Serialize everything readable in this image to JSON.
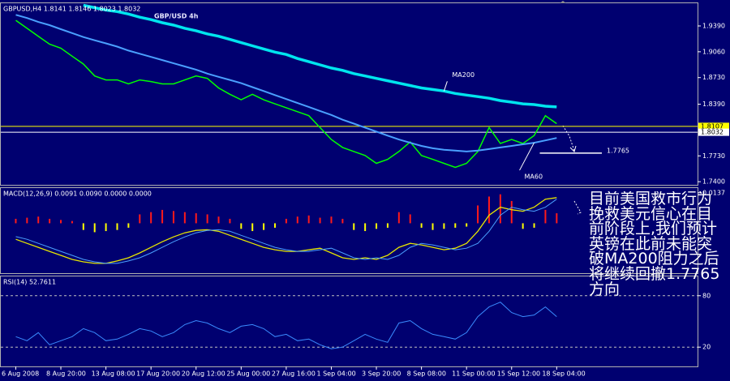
{
  "chart_data": [
    {
      "type": "line",
      "title": "GBP/USD 4h",
      "label": "GBPUSD,H4 1.8141 1.8146 1.8023 1.8032",
      "xlim": [
        -1.4,
        60.5
      ],
      "ylim": [
        1.736,
        1.968
      ],
      "yticks": [
        {
          "value": 1.939,
          "label": "1.9390"
        },
        {
          "value": 1.906,
          "label": "1.9060"
        },
        {
          "value": 1.873,
          "label": "1.8730"
        },
        {
          "value": 1.839,
          "label": "1.8390"
        },
        {
          "value": 1.773,
          "label": "1.7730"
        },
        {
          "value": 1.74,
          "label": "1.7400"
        }
      ],
      "hlines": [
        {
          "value": 1.8107,
          "color": "#ffff00",
          "style": "axis"
        },
        {
          "value": 1.8032,
          "color": "#ffffff",
          "style": "axis"
        },
        {
          "value": 1.7765,
          "color": "#ffffff",
          "style": "annotation"
        }
      ],
      "series": [
        {
          "color": "#00ff00",
          "width": 1.5,
          "values": [
            1.9461,
            1.936,
            1.9258,
            1.9157,
            1.9106,
            1.9004,
            1.8903,
            1.8751,
            1.87,
            1.87,
            1.8649,
            1.87,
            1.8679,
            1.8649,
            1.8649,
            1.87,
            1.8751,
            1.872,
            1.8598,
            1.8517,
            1.8446,
            1.8517,
            1.8446,
            1.8395,
            1.8345,
            1.8294,
            1.8243,
            1.8091,
            1.7939,
            1.7837,
            1.7786,
            1.7735,
            1.7634,
            1.7685,
            1.7786,
            1.7908,
            1.7735,
            1.7685,
            1.7634,
            1.7583,
            1.7634,
            1.7786,
            1.8091,
            1.7888,
            1.7939,
            1.7888,
            1.799,
            1.8243,
            1.8142
          ]
        },
        {
          "name": "MA200",
          "color": "#00e5ee",
          "width": 3.5,
          "values": [
            null,
            null,
            null,
            null,
            null,
            null,
            1.9654,
            1.9623,
            1.9593,
            1.9573,
            1.9542,
            1.9502,
            1.9471,
            1.9431,
            1.94,
            1.936,
            1.9329,
            1.9289,
            1.9258,
            1.9218,
            1.9177,
            1.9136,
            1.9096,
            1.9055,
            1.9025,
            1.8974,
            1.8933,
            1.8893,
            1.8852,
            1.8822,
            1.8781,
            1.8751,
            1.872,
            1.869,
            1.8659,
            1.8629,
            1.8598,
            1.8578,
            1.8558,
            1.8527,
            1.8507,
            1.8487,
            1.8466,
            1.8436,
            1.8416,
            1.8395,
            1.8385,
            1.8365,
            1.8355
          ]
        },
        {
          "name": "MA60",
          "color": "#4aa0ff",
          "width": 2,
          "values": [
            1.9532,
            1.9492,
            1.9441,
            1.94,
            1.9349,
            1.9299,
            1.9248,
            1.9207,
            1.9167,
            1.9126,
            1.9075,
            1.9035,
            1.8994,
            1.8954,
            1.8913,
            1.8872,
            1.8832,
            1.8781,
            1.874,
            1.87,
            1.8659,
            1.8608,
            1.8558,
            1.8507,
            1.8456,
            1.8405,
            1.8355,
            1.8304,
            1.8253,
            1.8192,
            1.8142,
            1.8091,
            1.804,
            1.7989,
            1.7939,
            1.7898,
            1.7857,
            1.7827,
            1.7807,
            1.7797,
            1.7786,
            1.7797,
            1.7817,
            1.7837,
            1.7857,
            1.7878,
            1.7898,
            1.7928,
            1.7959
          ]
        }
      ],
      "note": "目前美国救市行为挽救美元信心在目前阶段上,我们预计英镑在此前未能突破MA200阻力之后将继续回撤1.7765方向"
    },
    {
      "type": "macd",
      "label": "MACD(12,26,9) 0.0091 0.0090 0.0000 0.0000",
      "xlim": [
        -1.4,
        60.5
      ],
      "ylim": [
        -0.0224,
        0.0158
      ],
      "yticks": [
        0.0137
      ],
      "histogram": {
        "positive_color": "#ff1a1a",
        "negative_color": "#ffff00",
        "values": [
          0.002,
          0.0025,
          0.003,
          0.002,
          0.0015,
          0.001,
          -0.003,
          -0.004,
          -0.0035,
          -0.003,
          -0.002,
          0.004,
          0.005,
          0.006,
          0.0055,
          0.005,
          0.0045,
          0.004,
          0.003,
          0.002,
          -0.0025,
          -0.0035,
          -0.003,
          -0.002,
          0.002,
          0.003,
          0.0035,
          0.0025,
          0.003,
          0.002,
          -0.003,
          -0.0035,
          -0.0025,
          -0.002,
          0.005,
          0.004,
          -0.002,
          -0.003,
          -0.0025,
          -0.002,
          -0.0015,
          0.008,
          0.012,
          0.013,
          0.01,
          -0.0025,
          -0.002,
          0.006,
          0.0045
        ]
      },
      "series": [
        {
          "color": "#e6e600",
          "width": 1.3,
          "values": [
            -0.0072,
            -0.009,
            -0.0108,
            -0.0126,
            -0.0144,
            -0.0162,
            -0.0173,
            -0.018,
            -0.018,
            -0.0169,
            -0.0155,
            -0.0133,
            -0.0108,
            -0.0083,
            -0.0061,
            -0.0043,
            -0.0032,
            -0.0029,
            -0.0036,
            -0.0054,
            -0.0072,
            -0.009,
            -0.0108,
            -0.0119,
            -0.0126,
            -0.0126,
            -0.0119,
            -0.0112,
            -0.0133,
            -0.0155,
            -0.0162,
            -0.0155,
            -0.0162,
            -0.0144,
            -0.0108,
            -0.009,
            -0.0097,
            -0.0108,
            -0.0119,
            -0.0112,
            -0.009,
            -0.0036,
            0.0036,
            0.0072,
            0.0061,
            0.0054,
            0.0072,
            0.0108,
            0.0115
          ]
        },
        {
          "color": "#4aa0ff",
          "width": 1,
          "values": [
            -0.006,
            -0.0072,
            -0.009,
            -0.0108,
            -0.0126,
            -0.0144,
            -0.0162,
            -0.0173,
            -0.018,
            -0.018,
            -0.0169,
            -0.0155,
            -0.0133,
            -0.0108,
            -0.0083,
            -0.0061,
            -0.0043,
            -0.0032,
            -0.0029,
            -0.0036,
            -0.0054,
            -0.0072,
            -0.009,
            -0.0108,
            -0.0119,
            -0.0126,
            -0.0126,
            -0.0119,
            -0.0112,
            -0.0133,
            -0.0155,
            -0.0162,
            -0.0155,
            -0.0162,
            -0.0144,
            -0.0108,
            -0.009,
            -0.0097,
            -0.0108,
            -0.0119,
            -0.0112,
            -0.009,
            -0.0036,
            0.0036,
            0.0072,
            0.0061,
            0.0054,
            0.0072,
            0.0108
          ]
        }
      ]
    },
    {
      "type": "line",
      "label": "RSI(14) 52.7611",
      "xlim": [
        -1.4,
        60.5
      ],
      "ylim": [
        -2.5,
        102.5
      ],
      "yticks": [
        80,
        20
      ],
      "grid": true,
      "series": [
        {
          "color": "#3a8cff",
          "width": 1,
          "values": [
            32.2,
            27.5,
            36.9,
            22.8,
            27.5,
            32.2,
            41.6,
            36.9,
            27.5,
            29.4,
            35.0,
            41.6,
            38.8,
            32.2,
            36.9,
            46.3,
            50.9,
            48.1,
            41.6,
            36.9,
            44.4,
            46.3,
            41.6,
            32.2,
            35.0,
            27.5,
            29.4,
            22.8,
            18.1,
            20.0,
            27.5,
            35.0,
            29.4,
            25.6,
            48.1,
            50.9,
            41.6,
            35.0,
            32.2,
            29.4,
            36.9,
            55.6,
            66.9,
            72.5,
            60.3,
            55.6,
            57.5,
            66.9,
            55.6
          ]
        }
      ],
      "xticks": [
        {
          "value": 0,
          "label": "6 Aug 2008"
        },
        {
          "value": 4,
          "label": "8 Aug 20:00"
        },
        {
          "value": 8,
          "label": "13 Aug 08:00"
        },
        {
          "value": 12,
          "label": "17 Aug 20:00"
        },
        {
          "value": 16,
          "label": "20 Aug 12:00"
        },
        {
          "value": 20,
          "label": "25 Aug 00:00"
        },
        {
          "value": 24,
          "label": "27 Aug 16:00"
        },
        {
          "value": 28,
          "label": "1 Sep 04:00"
        },
        {
          "value": 32,
          "label": "3 Sep 20:00"
        },
        {
          "value": 36,
          "label": "8 Sep 08:00"
        },
        {
          "value": 40,
          "label": "11 Sep 00:00"
        },
        {
          "value": 44,
          "label": "15 Sep 12:00"
        },
        {
          "value": 48,
          "label": "18 Sep 04:00"
        }
      ]
    }
  ]
}
